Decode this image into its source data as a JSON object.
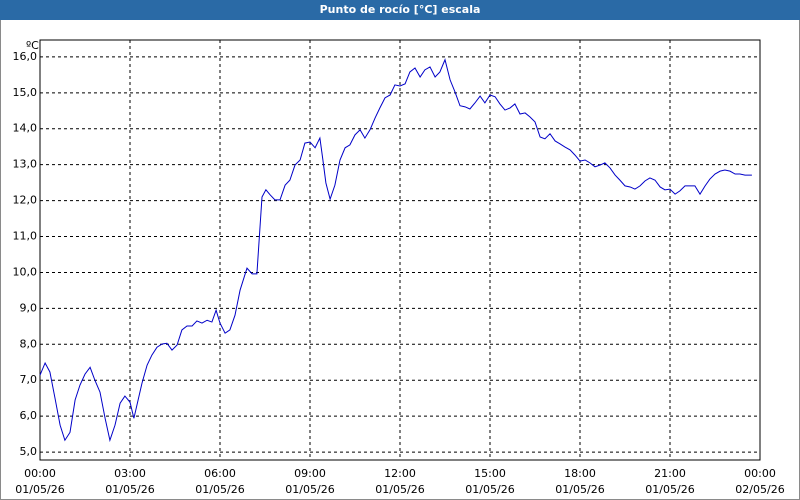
{
  "chart_data": {
    "type": "line",
    "title": "Punto de rocío [°C] escala",
    "y_unit": "ºC",
    "x": [
      0,
      0.17,
      0.33,
      0.5,
      0.67,
      0.83,
      1,
      1.17,
      1.33,
      1.5,
      1.67,
      1.83,
      2,
      2.17,
      2.33,
      2.5,
      2.67,
      2.83,
      3,
      3.13,
      3.27,
      3.4,
      3.57,
      3.73,
      3.9,
      4.07,
      4.23,
      4.4,
      4.57,
      4.73,
      4.9,
      5.07,
      5.23,
      5.4,
      5.57,
      5.73,
      5.87,
      6,
      6.17,
      6.33,
      6.5,
      6.67,
      6.9,
      7.07,
      7.23,
      7.4,
      7.53,
      7.67,
      7.83,
      8,
      8.17,
      8.33,
      8.5,
      8.67,
      8.83,
      9,
      9.17,
      9.33,
      9.43,
      9.53,
      9.67,
      9.83,
      10,
      10.17,
      10.33,
      10.5,
      10.67,
      10.83,
      11,
      11.17,
      11.33,
      11.5,
      11.67,
      11.83,
      12,
      12.17,
      12.33,
      12.5,
      12.67,
      12.83,
      13,
      13.17,
      13.33,
      13.5,
      13.67,
      13.83,
      14,
      14.17,
      14.33,
      14.5,
      14.67,
      14.83,
      15,
      15.17,
      15.33,
      15.5,
      15.67,
      15.83,
      16,
      16.17,
      16.33,
      16.5,
      16.67,
      16.83,
      17,
      17.17,
      17.33,
      17.5,
      17.67,
      17.83,
      18,
      18.17,
      18.33,
      18.5,
      18.67,
      18.83,
      19,
      19.17,
      19.33,
      19.5,
      19.67,
      19.83,
      20,
      20.17,
      20.33,
      20.5,
      20.67,
      20.83,
      21,
      21.17,
      21.33,
      21.5,
      21.67,
      21.83,
      22,
      22.17,
      22.33,
      22.5,
      22.67,
      22.83,
      23,
      23.17,
      23.33,
      23.5,
      23.73
    ],
    "series": [
      {
        "color": "#0000c8",
        "values": [
          7.14,
          7.48,
          7.23,
          6.5,
          5.75,
          5.33,
          5.55,
          6.45,
          6.86,
          7.17,
          7.36,
          7.0,
          6.67,
          5.94,
          5.33,
          5.75,
          6.36,
          6.56,
          6.39,
          5.94,
          6.45,
          6.92,
          7.42,
          7.7,
          7.92,
          8.01,
          8.03,
          7.84,
          7.98,
          8.4,
          8.51,
          8.51,
          8.65,
          8.59,
          8.67,
          8.62,
          8.95,
          8.59,
          8.31,
          8.4,
          8.81,
          9.51,
          10.12,
          9.96,
          9.96,
          12.1,
          12.3,
          12.16,
          12.02,
          12.02,
          12.43,
          12.57,
          12.99,
          13.13,
          13.6,
          13.63,
          13.47,
          13.74,
          13.13,
          12.49,
          12.04,
          12.43,
          13.13,
          13.47,
          13.55,
          13.83,
          13.97,
          13.74,
          13.97,
          14.3,
          14.58,
          14.86,
          14.94,
          15.22,
          15.19,
          15.25,
          15.58,
          15.69,
          15.44,
          15.64,
          15.72,
          15.44,
          15.58,
          15.92,
          15.36,
          15.03,
          14.64,
          14.61,
          14.55,
          14.72,
          14.91,
          14.72,
          14.94,
          14.89,
          14.69,
          14.52,
          14.58,
          14.69,
          14.41,
          14.44,
          14.33,
          14.19,
          13.77,
          13.72,
          13.86,
          13.66,
          13.58,
          13.49,
          13.41,
          13.27,
          13.1,
          13.13,
          13.05,
          12.94,
          12.99,
          13.05,
          12.91,
          12.71,
          12.57,
          12.41,
          12.38,
          12.32,
          12.41,
          12.55,
          12.63,
          12.57,
          12.38,
          12.3,
          12.32,
          12.18,
          12.27,
          12.41,
          12.41,
          12.41,
          12.18,
          12.41,
          12.6,
          12.74,
          12.82,
          12.85,
          12.82,
          12.74,
          12.74,
          12.71,
          12.71
        ]
      }
    ],
    "xlim": [
      0,
      24
    ],
    "xticks": [
      {
        "value": 0,
        "label": "00:00"
      },
      {
        "value": 3,
        "label": "03:00"
      },
      {
        "value": 6,
        "label": "06:00"
      },
      {
        "value": 9,
        "label": "09:00"
      },
      {
        "value": 12,
        "label": "12:00"
      },
      {
        "value": 15,
        "label": "15:00"
      },
      {
        "value": 18,
        "label": "18:00"
      },
      {
        "value": 21,
        "label": "21:00"
      },
      {
        "value": 24,
        "label": "00:00"
      }
    ],
    "xtick_dates": [
      "01/05/26",
      "01/05/26",
      "01/05/26",
      "01/05/26",
      "01/05/26",
      "01/05/26",
      "01/05/26",
      "01/05/26",
      "02/05/26"
    ],
    "ylim": [
      4.78,
      16.47
    ],
    "yticks": [
      {
        "value": 5,
        "label": "5,0"
      },
      {
        "value": 6,
        "label": "6,0"
      },
      {
        "value": 7,
        "label": "7,0"
      },
      {
        "value": 8,
        "label": "8,0"
      },
      {
        "value": 9,
        "label": "9,0"
      },
      {
        "value": 10,
        "label": "10,0"
      },
      {
        "value": 11,
        "label": "11,0"
      },
      {
        "value": 12,
        "label": "12,0"
      },
      {
        "value": 13,
        "label": "13,0"
      },
      {
        "value": 14,
        "label": "14,0"
      },
      {
        "value": 15,
        "label": "15,0"
      },
      {
        "value": 16,
        "label": "16,0"
      }
    ],
    "grid": true
  }
}
